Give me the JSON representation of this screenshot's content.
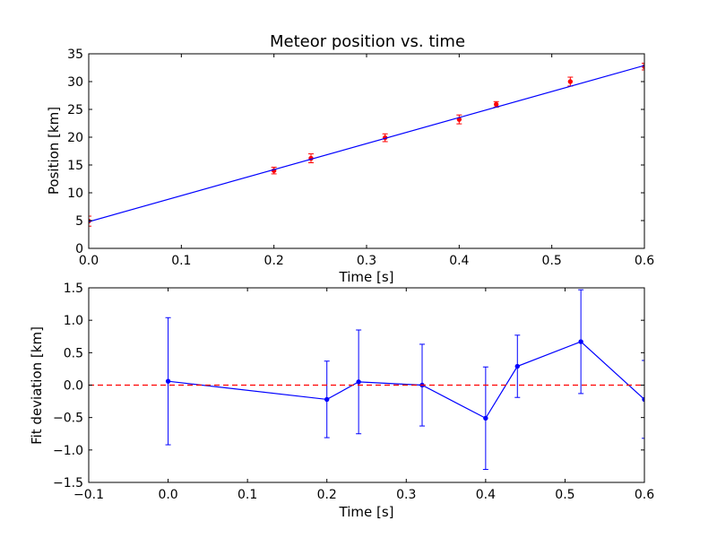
{
  "figure": {
    "background": "#ffffff"
  },
  "chart_data": [
    {
      "type": "scatter",
      "title": "Meteor position vs. time",
      "xlabel": "Time [s]",
      "ylabel": "Position [km]",
      "xlim": [
        0.0,
        0.6
      ],
      "ylim": [
        0,
        35
      ],
      "x_ticks": [
        "0.0",
        "0.1",
        "0.2",
        "0.3",
        "0.4",
        "0.5",
        "0.6"
      ],
      "y_ticks": [
        "0",
        "5",
        "10",
        "15",
        "20",
        "25",
        "30",
        "35"
      ],
      "grid": false,
      "series": [
        {
          "kind": "errorbar-points",
          "color": "#ff0000",
          "x": [
            0.0,
            0.2,
            0.24,
            0.32,
            0.4,
            0.44,
            0.52,
            0.6
          ],
          "y": [
            4.9,
            14.0,
            16.2,
            19.9,
            23.2,
            25.9,
            30.0,
            32.7
          ],
          "yerr": [
            0.9,
            0.6,
            0.8,
            0.7,
            0.8,
            0.5,
            0.8,
            0.6
          ]
        },
        {
          "kind": "fit-line",
          "color": "#0000ff",
          "x": [
            0.0,
            0.6
          ],
          "y": [
            4.8,
            32.9
          ]
        }
      ]
    },
    {
      "type": "line",
      "title": "",
      "xlabel": "Time [s]",
      "ylabel": "Fit deviation [km]",
      "xlim": [
        -0.1,
        0.6
      ],
      "ylim": [
        -1.5,
        1.5
      ],
      "x_ticks": [
        "−0.1",
        "0.0",
        "0.1",
        "0.2",
        "0.3",
        "0.4",
        "0.5",
        "0.6"
      ],
      "y_ticks": [
        "−1.5",
        "−1.0",
        "−0.5",
        "0.0",
        "0.5",
        "1.0",
        "1.5"
      ],
      "grid": false,
      "series": [
        {
          "kind": "errorbar-line",
          "color": "#0000ff",
          "x": [
            0.0,
            0.2,
            0.24,
            0.32,
            0.4,
            0.44,
            0.52,
            0.6
          ],
          "y": [
            0.06,
            -0.22,
            0.05,
            0.0,
            -0.51,
            0.29,
            0.67,
            -0.22
          ],
          "yerr": [
            0.98,
            0.59,
            0.8,
            0.63,
            0.79,
            0.48,
            0.8,
            0.6
          ]
        },
        {
          "kind": "reference-line",
          "color": "#ff0000",
          "dash": "dashed",
          "y": 0.0
        }
      ]
    }
  ]
}
